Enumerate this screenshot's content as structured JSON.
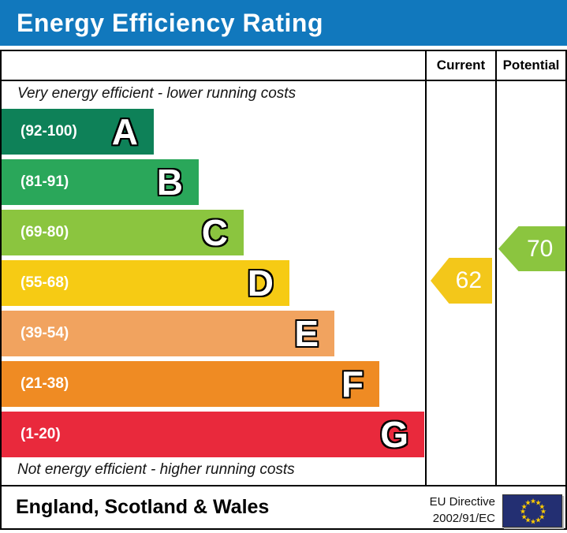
{
  "title": "Energy Efficiency Rating",
  "columns": {
    "current": "Current",
    "potential": "Potential"
  },
  "captions": {
    "top": "Very energy efficient - lower running costs",
    "bottom": "Not energy efficient - higher running costs"
  },
  "bands": [
    {
      "letter": "A",
      "range": "(92-100)",
      "color": "#0e8158"
    },
    {
      "letter": "B",
      "range": "(81-91)",
      "color": "#2aa75a"
    },
    {
      "letter": "C",
      "range": "(69-80)",
      "color": "#8bc53f"
    },
    {
      "letter": "D",
      "range": "(55-68)",
      "color": "#f6cb14"
    },
    {
      "letter": "E",
      "range": "(39-54)",
      "color": "#f1a35f"
    },
    {
      "letter": "F",
      "range": "(21-38)",
      "color": "#ef8b23"
    },
    {
      "letter": "G",
      "range": "(1-20)",
      "color": "#e9293c"
    }
  ],
  "ratings": {
    "current": {
      "value": "62",
      "color": "#f3c71a"
    },
    "potential": {
      "value": "70",
      "color": "#8bc53f"
    }
  },
  "footer": {
    "region": "England, Scotland & Wales",
    "directive_line1": "EU Directive",
    "directive_line2": "2002/91/EC"
  },
  "colors": {
    "title_bar": "#1178bd",
    "frame": "#000000",
    "eu_flag_blue": "#232f72",
    "eu_star_yellow": "#ffcc00"
  },
  "chart_data": {
    "type": "bar",
    "title": "Energy Efficiency Rating",
    "categories": [
      "A",
      "B",
      "C",
      "D",
      "E",
      "F",
      "G"
    ],
    "band_ranges": [
      "92-100",
      "81-91",
      "69-80",
      "55-68",
      "39-54",
      "21-38",
      "1-20"
    ],
    "band_colors": [
      "#0e8158",
      "#2aa75a",
      "#8bc53f",
      "#f6cb14",
      "#f1a35f",
      "#ef8b23",
      "#e9293c"
    ],
    "series": [
      {
        "name": "Current",
        "values": [
          62
        ],
        "band": "D",
        "marker_color": "#f3c71a"
      },
      {
        "name": "Potential",
        "values": [
          70
        ],
        "band": "C",
        "marker_color": "#8bc53f"
      }
    ],
    "value_range": [
      1,
      100
    ],
    "annotations": [
      "Very energy efficient - lower running costs",
      "Not energy efficient - higher running costs"
    ],
    "region": "England, Scotland & Wales",
    "directive": "EU Directive 2002/91/EC",
    "legend_position": "none",
    "grid": false
  }
}
